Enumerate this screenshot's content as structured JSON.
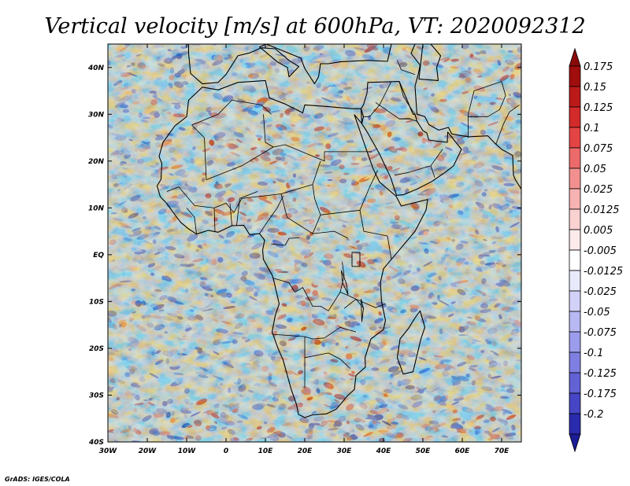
{
  "title": "Vertical velocity [m/s] at 600hPa, VT: 2020092312",
  "credit": "GrADS: IGES/COLA",
  "map": {
    "projection": "latlon",
    "lon_range": [
      -30,
      75
    ],
    "lat_range": [
      -40,
      45
    ],
    "lon_ticks": [
      {
        "value": -30,
        "label": "30W"
      },
      {
        "value": -20,
        "label": "20W"
      },
      {
        "value": -10,
        "label": "10W"
      },
      {
        "value": 0,
        "label": "0"
      },
      {
        "value": 10,
        "label": "10E"
      },
      {
        "value": 20,
        "label": "20E"
      },
      {
        "value": 30,
        "label": "30E"
      },
      {
        "value": 40,
        "label": "40E"
      },
      {
        "value": 50,
        "label": "50E"
      },
      {
        "value": 60,
        "label": "60E"
      },
      {
        "value": 70,
        "label": "70E"
      }
    ],
    "lat_ticks": [
      {
        "value": 40,
        "label": "40N"
      },
      {
        "value": 30,
        "label": "30N"
      },
      {
        "value": 20,
        "label": "20N"
      },
      {
        "value": 10,
        "label": "10N"
      },
      {
        "value": 0,
        "label": "EQ"
      },
      {
        "value": -10,
        "label": "10S"
      },
      {
        "value": -20,
        "label": "20S"
      },
      {
        "value": -30,
        "label": "30S"
      },
      {
        "value": -40,
        "label": "40S"
      }
    ],
    "field_variable": "Vertical velocity",
    "field_units": "m/s",
    "level": "600hPa",
    "valid_time": "2020092312"
  },
  "colorbar": {
    "orientation": "vertical",
    "extend": "both",
    "levels": [
      {
        "label": "0.175",
        "color": "#a00d0d"
      },
      {
        "label": "0.15",
        "color": "#bc1a1a"
      },
      {
        "label": "0.125",
        "color": "#d32a2a"
      },
      {
        "label": "0.1",
        "color": "#e54444"
      },
      {
        "label": "0.075",
        "color": "#ec6a6a"
      },
      {
        "label": "0.05",
        "color": "#f29090"
      },
      {
        "label": "0.025",
        "color": "#f7b2b2"
      },
      {
        "label": "0.0125",
        "color": "#fbd2d2"
      },
      {
        "label": "0.005",
        "color": "#fdeaea"
      },
      {
        "label": "-0.005",
        "color": "#ffffff"
      },
      {
        "label": "-0.0125",
        "color": "#e9e9fc"
      },
      {
        "label": "-0.025",
        "color": "#d2d2f8"
      },
      {
        "label": "-0.05",
        "color": "#b8b8f3"
      },
      {
        "label": "-0.075",
        "color": "#9c9cec"
      },
      {
        "label": "-0.1",
        "color": "#7f7fe2"
      },
      {
        "label": "-0.125",
        "color": "#6262d5"
      },
      {
        "label": "-0.175",
        "color": "#4545c5"
      },
      {
        "label": "-0.2",
        "color": "#2a2aae"
      }
    ],
    "top_arrow_color": "#8a0a0a",
    "bottom_arrow_color": "#1c1c96"
  }
}
